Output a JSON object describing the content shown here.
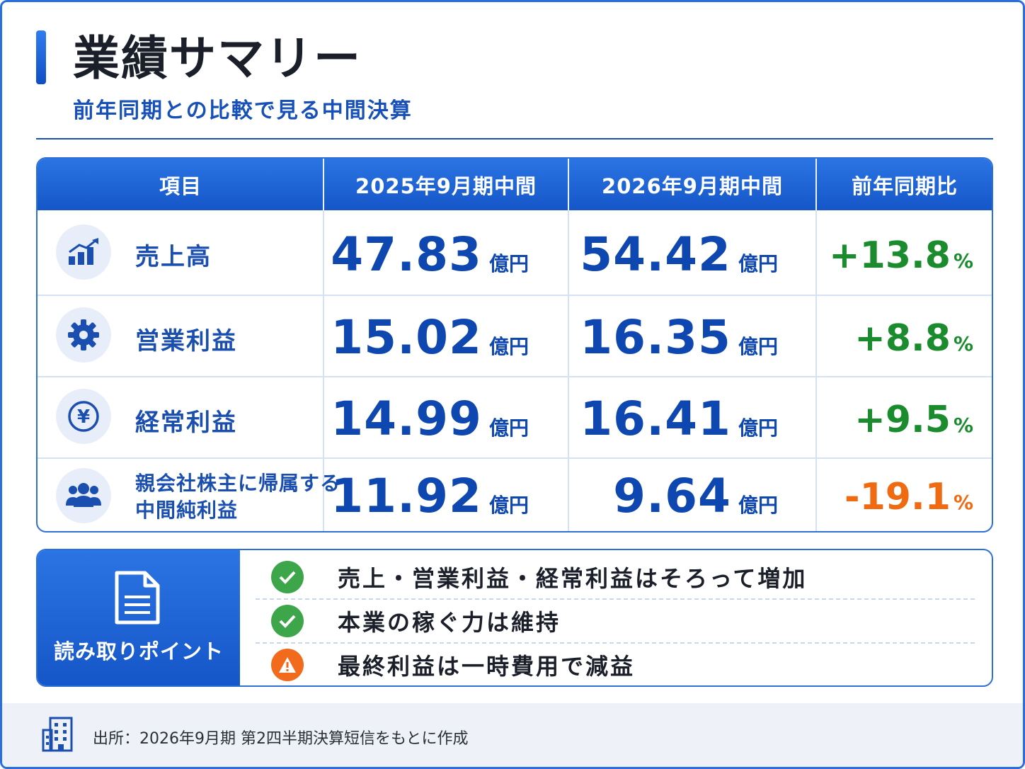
{
  "header": {
    "title": "業績サマリー",
    "subtitle": "前年同期との比較で見る中間決算"
  },
  "table": {
    "columns": [
      "項目",
      "2025年9月期中間",
      "2026年9月期中間",
      "前年同期比"
    ],
    "unit": "億円",
    "percent_sign": "%",
    "rows": [
      {
        "icon": "bar-chart-icon",
        "label": "売上高",
        "prev": "47.83",
        "curr": "54.42",
        "change": "+13.8",
        "trend": "up"
      },
      {
        "icon": "gear-icon",
        "label": "営業利益",
        "prev": "15.02",
        "curr": "16.35",
        "change": "+8.8",
        "trend": "up"
      },
      {
        "icon": "yen-icon",
        "label": "経常利益",
        "prev": "14.99",
        "curr": "16.41",
        "change": "+9.5",
        "trend": "up"
      },
      {
        "icon": "people-icon",
        "label_line1": "親会社株主に帰属する",
        "label_line2": "中間純利益",
        "prev": "11.92",
        "curr": "9.64",
        "change": "-19.1",
        "trend": "down"
      }
    ]
  },
  "points": {
    "title": "読み取りポイント",
    "items": [
      {
        "icon": "check-icon",
        "text": "売上・営業利益・経常利益はそろって増加"
      },
      {
        "icon": "check-icon",
        "text": "本業の稼ぐ力は維持"
      },
      {
        "icon": "warning-icon",
        "text": "最終利益は一時費用で減益"
      }
    ]
  },
  "footer": {
    "source": "出所：2026年9月期 第2四半期決算短信をもとに作成"
  },
  "colors": {
    "primary": "#1556c8",
    "positive": "#1a8c2e",
    "negative": "#f06a12"
  }
}
